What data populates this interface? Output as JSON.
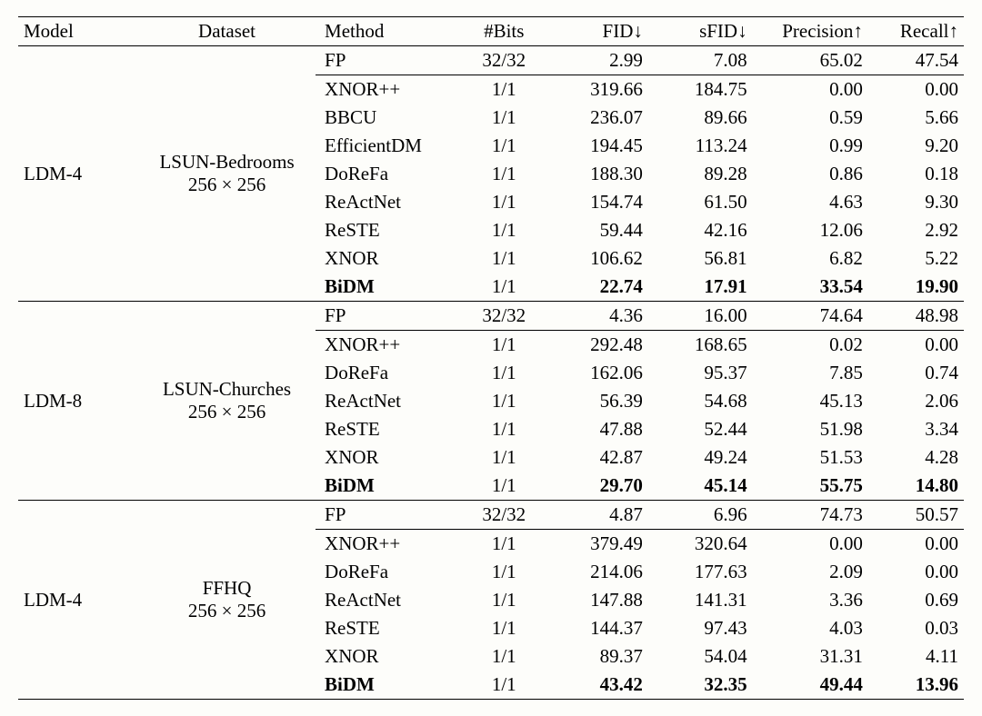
{
  "table": {
    "columns": [
      "Model",
      "Dataset",
      "Method",
      "#Bits",
      "FID↓",
      "sFID↓",
      "Precision↑",
      "Recall↑"
    ],
    "col_align": [
      "left",
      "center",
      "left",
      "center",
      "right",
      "right",
      "right",
      "right"
    ],
    "font_family": "Times New Roman",
    "font_size_pt": 16,
    "border_color": "#000000",
    "background_color": "#fdfdfa",
    "text_color": "#000000",
    "groups": [
      {
        "model": "LDM-4",
        "dataset_name": "LSUN-Bedrooms",
        "dataset_res": "256 × 256",
        "rows": [
          {
            "method": "FP",
            "bits": "32/32",
            "fid": "2.99",
            "sfid": "7.08",
            "precision": "65.02",
            "recall": "47.54",
            "bold": false,
            "fp": true
          },
          {
            "method": "XNOR++",
            "bits": "1/1",
            "fid": "319.66",
            "sfid": "184.75",
            "precision": "0.00",
            "recall": "0.00",
            "bold": false
          },
          {
            "method": "BBCU",
            "bits": "1/1",
            "fid": "236.07",
            "sfid": "89.66",
            "precision": "0.59",
            "recall": "5.66",
            "bold": false
          },
          {
            "method": "EfficientDM",
            "bits": "1/1",
            "fid": "194.45",
            "sfid": "113.24",
            "precision": "0.99",
            "recall": "9.20",
            "bold": false
          },
          {
            "method": "DoReFa",
            "bits": "1/1",
            "fid": "188.30",
            "sfid": "89.28",
            "precision": "0.86",
            "recall": "0.18",
            "bold": false
          },
          {
            "method": "ReActNet",
            "bits": "1/1",
            "fid": "154.74",
            "sfid": "61.50",
            "precision": "4.63",
            "recall": "9.30",
            "bold": false
          },
          {
            "method": "ReSTE",
            "bits": "1/1",
            "fid": "59.44",
            "sfid": "42.16",
            "precision": "12.06",
            "recall": "2.92",
            "bold": false
          },
          {
            "method": "XNOR",
            "bits": "1/1",
            "fid": "106.62",
            "sfid": "56.81",
            "precision": "6.82",
            "recall": "5.22",
            "bold": false
          },
          {
            "method": "BiDM",
            "bits": "1/1",
            "fid": "22.74",
            "sfid": "17.91",
            "precision": "33.54",
            "recall": "19.90",
            "bold": true
          }
        ]
      },
      {
        "model": "LDM-8",
        "dataset_name": "LSUN-Churches",
        "dataset_res": "256 × 256",
        "rows": [
          {
            "method": "FP",
            "bits": "32/32",
            "fid": "4.36",
            "sfid": "16.00",
            "precision": "74.64",
            "recall": "48.98",
            "bold": false,
            "fp": true
          },
          {
            "method": "XNOR++",
            "bits": "1/1",
            "fid": "292.48",
            "sfid": "168.65",
            "precision": "0.02",
            "recall": "0.00",
            "bold": false
          },
          {
            "method": "DoReFa",
            "bits": "1/1",
            "fid": "162.06",
            "sfid": "95.37",
            "precision": "7.85",
            "recall": "0.74",
            "bold": false
          },
          {
            "method": "ReActNet",
            "bits": "1/1",
            "fid": "56.39",
            "sfid": "54.68",
            "precision": "45.13",
            "recall": "2.06",
            "bold": false
          },
          {
            "method": "ReSTE",
            "bits": "1/1",
            "fid": "47.88",
            "sfid": "52.44",
            "precision": "51.98",
            "recall": "3.34",
            "bold": false
          },
          {
            "method": "XNOR",
            "bits": "1/1",
            "fid": "42.87",
            "sfid": "49.24",
            "precision": "51.53",
            "recall": "4.28",
            "bold": false
          },
          {
            "method": "BiDM",
            "bits": "1/1",
            "fid": "29.70",
            "sfid": "45.14",
            "precision": "55.75",
            "recall": "14.80",
            "bold": true
          }
        ]
      },
      {
        "model": "LDM-4",
        "dataset_name": "FFHQ",
        "dataset_res": "256 × 256",
        "rows": [
          {
            "method": "FP",
            "bits": "32/32",
            "fid": "4.87",
            "sfid": "6.96",
            "precision": "74.73",
            "recall": "50.57",
            "bold": false,
            "fp": true
          },
          {
            "method": "XNOR++",
            "bits": "1/1",
            "fid": "379.49",
            "sfid": "320.64",
            "precision": "0.00",
            "recall": "0.00",
            "bold": false
          },
          {
            "method": "DoReFa",
            "bits": "1/1",
            "fid": "214.06",
            "sfid": "177.63",
            "precision": "2.09",
            "recall": "0.00",
            "bold": false
          },
          {
            "method": "ReActNet",
            "bits": "1/1",
            "fid": "147.88",
            "sfid": "141.31",
            "precision": "3.36",
            "recall": "0.69",
            "bold": false
          },
          {
            "method": "ReSTE",
            "bits": "1/1",
            "fid": "144.37",
            "sfid": "97.43",
            "precision": "4.03",
            "recall": "0.03",
            "bold": false
          },
          {
            "method": "XNOR",
            "bits": "1/1",
            "fid": "89.37",
            "sfid": "54.04",
            "precision": "31.31",
            "recall": "4.11",
            "bold": false
          },
          {
            "method": "BiDM",
            "bits": "1/1",
            "fid": "43.42",
            "sfid": "32.35",
            "precision": "49.44",
            "recall": "13.96",
            "bold": true
          }
        ]
      }
    ]
  }
}
